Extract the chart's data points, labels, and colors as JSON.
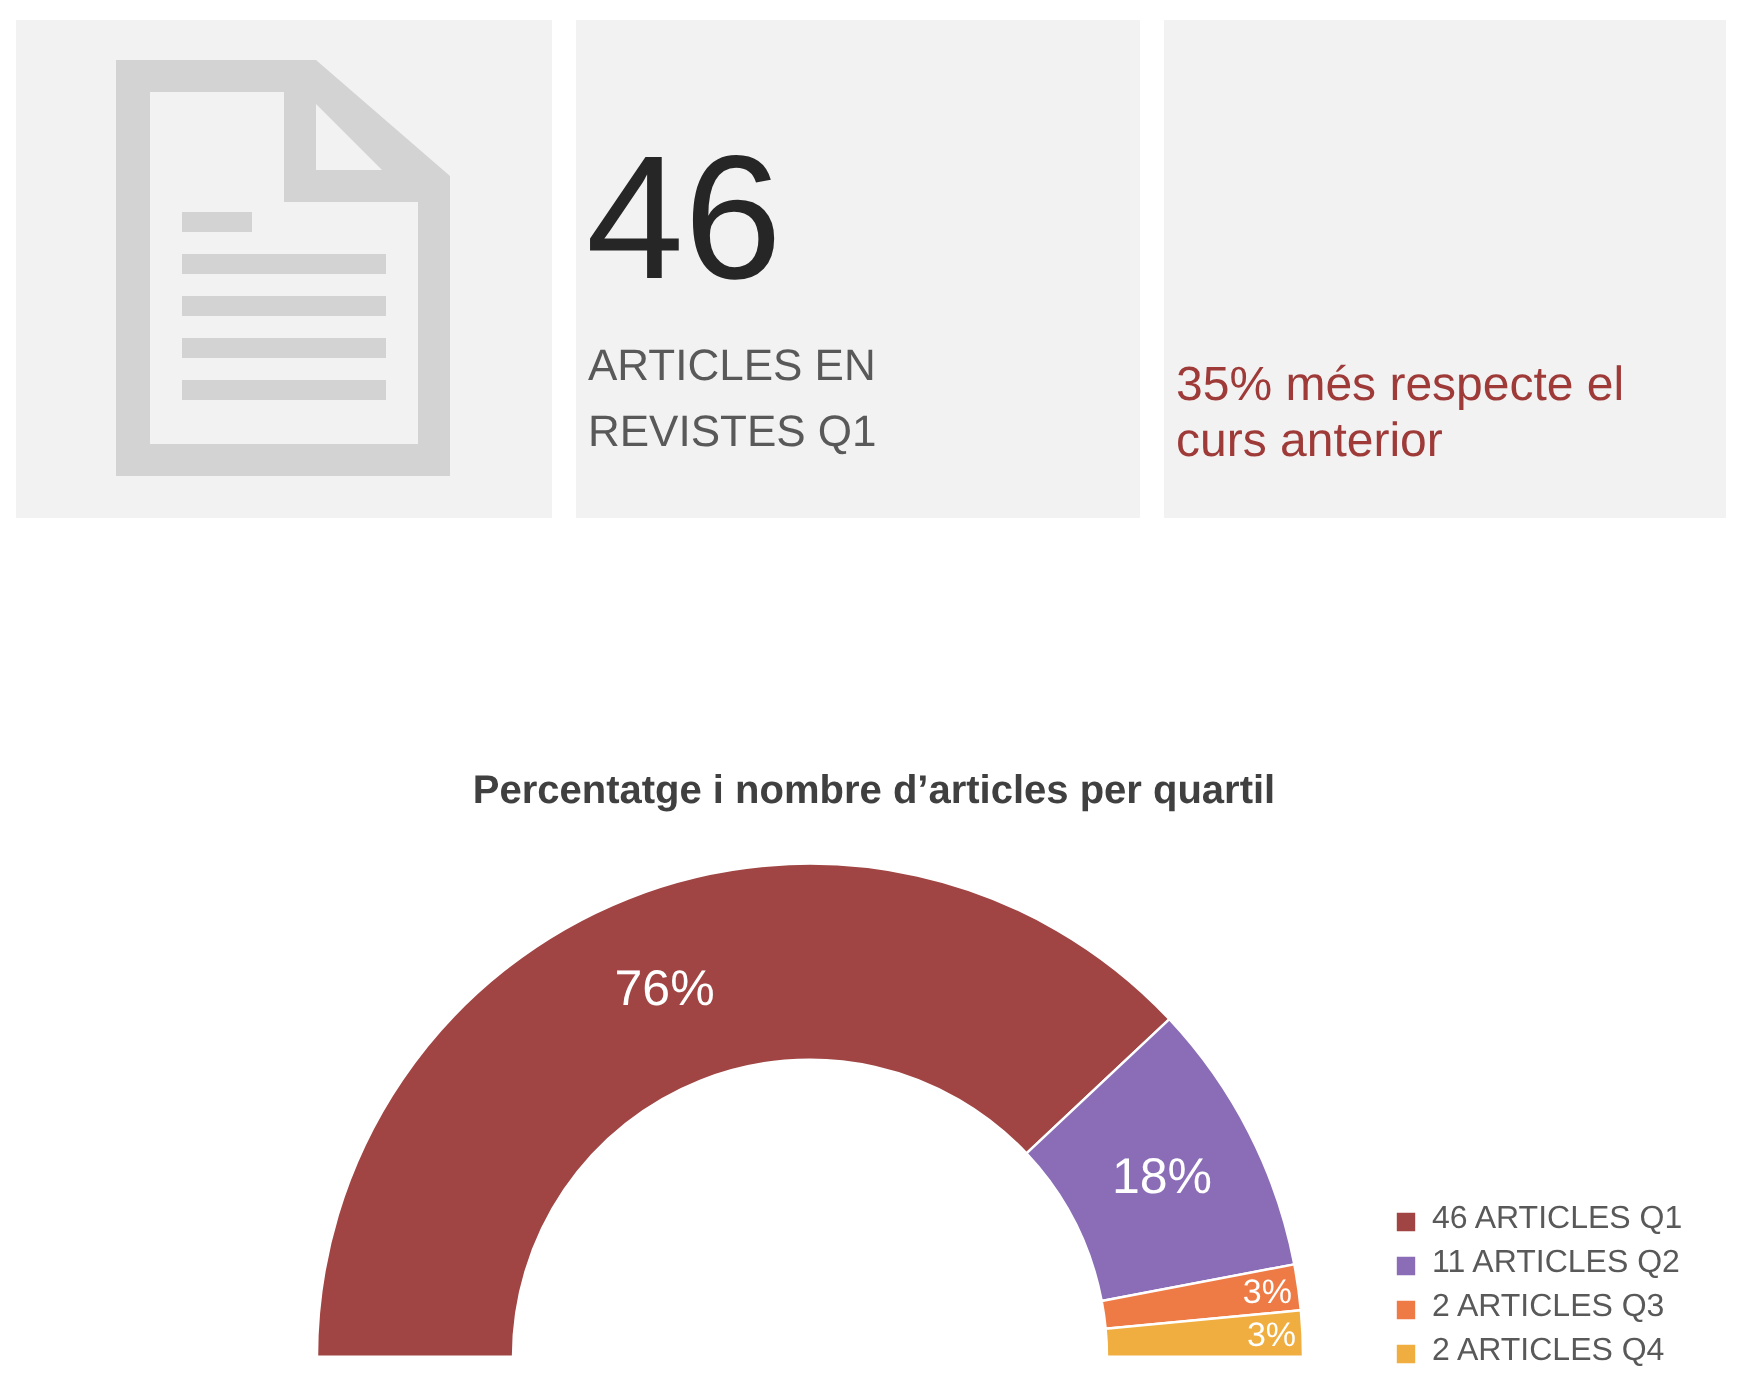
{
  "chart_data": [
    {
      "type": "other",
      "annotations": [
        "46",
        "ARTICLES EN REVISTES Q1",
        "35% més respecte el curs anterior"
      ]
    },
    {
      "type": "donut",
      "title": "Percentatge i nombre d’articles per quartil",
      "categories": [
        "46 ARTICLES Q1",
        "11 ARTICLES Q2",
        "2 ARTICLES Q3",
        "2 ARTICLES Q4"
      ],
      "values": [
        76,
        18,
        3,
        3
      ],
      "colors": [
        "#a04543",
        "#8a6db6",
        "#ee7b45",
        "#efae3f"
      ],
      "value_labels": [
        "76%",
        "18%",
        "3%",
        "3%"
      ],
      "legend": "bottom right"
    }
  ]
}
